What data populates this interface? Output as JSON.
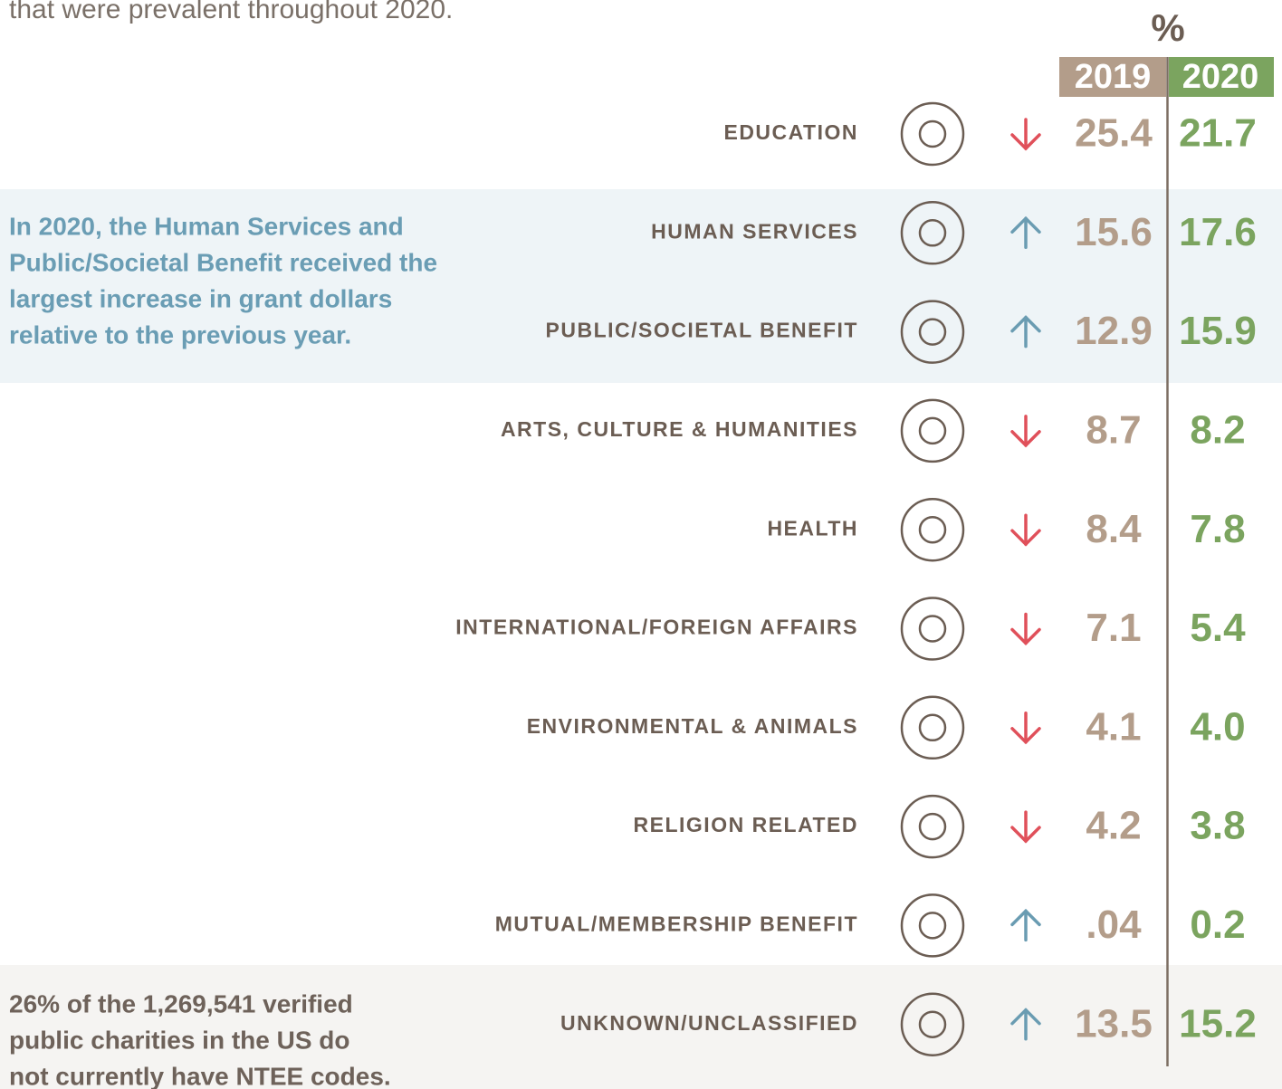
{
  "intro": "that were prevalent throughout 2020.",
  "table": {
    "unit": "%",
    "columns": [
      "2019",
      "2020"
    ],
    "rows": [
      {
        "label": "EDUCATION",
        "values": [
          "25.4",
          "21.7"
        ],
        "trend": "down"
      },
      {
        "label": "HUMAN SERVICES",
        "values": [
          "15.6",
          "17.6"
        ],
        "trend": "up"
      },
      {
        "label": "PUBLIC/SOCIETAL BENEFIT",
        "values": [
          "12.9",
          "15.9"
        ],
        "trend": "up"
      },
      {
        "label": "ARTS, CULTURE & HUMANITIES",
        "values": [
          "8.7",
          "8.2"
        ],
        "trend": "down"
      },
      {
        "label": "HEALTH",
        "values": [
          "8.4",
          "7.8"
        ],
        "trend": "down"
      },
      {
        "label": "INTERNATIONAL/FOREIGN AFFAIRS",
        "values": [
          "7.1",
          "5.4"
        ],
        "trend": "down"
      },
      {
        "label": "ENVIRONMENTAL & ANIMALS",
        "values": [
          "4.1",
          "4.0"
        ],
        "trend": "down"
      },
      {
        "label": "RELIGION RELATED",
        "values": [
          "4.2",
          "3.8"
        ],
        "trend": "down"
      },
      {
        "label": "MUTUAL/MEMBERSHIP BENEFIT",
        "values": [
          ".04",
          "0.2"
        ],
        "trend": "up"
      },
      {
        "label": "UNKNOWN/UNCLASSIFIED",
        "values": [
          "13.5",
          "15.2"
        ],
        "trend": "up"
      }
    ]
  },
  "callouts": [
    {
      "lines": [
        "In 2020, the Human Services and",
        "Public/Societal Benefit received the",
        "largest increase in grant dollars",
        "relative to the previous year."
      ]
    },
    {
      "lines": [
        "26% of the 1,269,541 verified",
        "public charities in the US do",
        "not currently have NTEE codes."
      ]
    }
  ]
}
